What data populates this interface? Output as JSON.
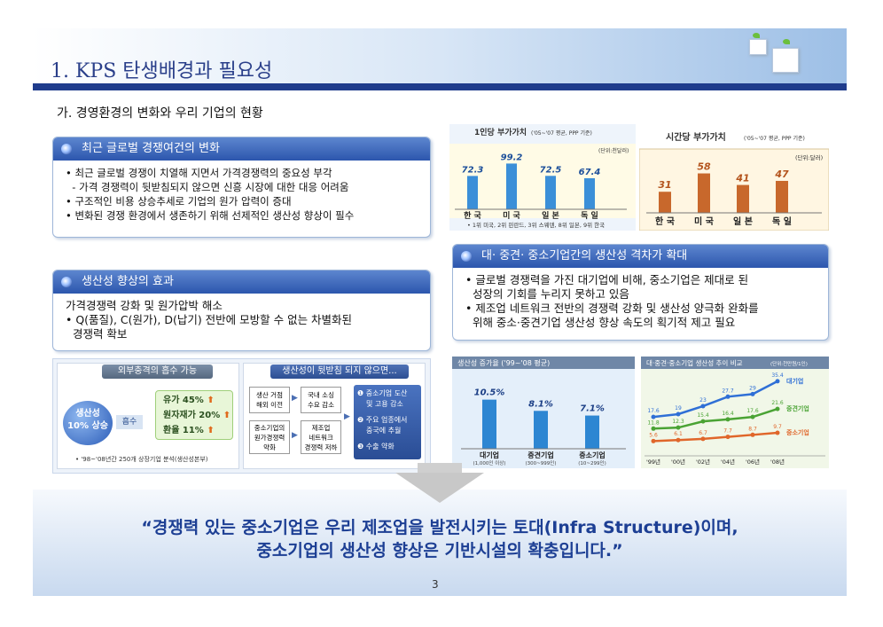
{
  "header": {
    "title": "1. KPS 탄생배경과 필요성"
  },
  "subtitle": "가. 경영환경의 변화와 우리 기업의 현황",
  "box1": {
    "heading": "최근 글로벌 경쟁여건의 변화",
    "lines": [
      "• 최근 글로벌 경쟁이 치열해 지면서 가격경쟁력의 중요성 부각",
      "  - 가격 경쟁력이 뒷받침되지 않으면 신흥 시장에 대한 대응 어려움",
      "• 구조적인 비용 상승추세로 기업의 원가 압력이 증대",
      "• 변화된 경쟁 환경에서 생존하기 위해 선제적인 생산성 향상이 필수"
    ]
  },
  "box2": {
    "heading": "생산성 향상의 효과",
    "lines": [
      "가격경쟁력 강화 및 원가압박 해소",
      "• Q(품질), C(원가), D(납기) 전반에 모방할 수 없는 차별화된",
      "  경쟁력 확보"
    ]
  },
  "box3": {
    "heading": "대· 중견· 중소기업간의 생산성 격차가 확대",
    "lines": [
      "• 글로벌 경쟁력을 가진 대기업에 비해, 중소기업은 제대로 된",
      "  성장의 기회를 누리지 못하고 있음",
      "• 제조업 네트워크 전반의 경쟁력 강화 및 생산성 양극화 완화를",
      "  위해 중소·중견기업 생산성 향상 속도의 획기적 제고 필요"
    ]
  },
  "effects": {
    "left_head": "외부충격의 흡수 가능",
    "circle": [
      "생산성",
      "10% 상승"
    ],
    "absorb": "흡수",
    "items": [
      "유가 45%",
      "원자재가 20%",
      "환율 11%"
    ],
    "note": "• '98~'08년간 250개 상장기업 분석(생산성본부)",
    "right_head": "생산성이 뒷받침 되지 않으면...",
    "flow": [
      [
        "생산 거점",
        "해외 이전"
      ],
      [
        "국내 소싱",
        "수요 감소"
      ],
      [
        "중소기업의",
        "원가경쟁력",
        "약화"
      ],
      [
        "제조업",
        "네트워크",
        "경쟁력 저하"
      ]
    ],
    "results": [
      "❶ 중소기업 도산",
      "및 고용 감소",
      "❷ 주요 업종에서",
      "중국에 추월",
      "❸ 수출 약화"
    ]
  },
  "chart_data": [
    {
      "type": "bar",
      "title": "1인당 부가가치",
      "subtitle": "('05~'07 평균, PPP 기준)",
      "unit": "(단위:천달러)",
      "categories": [
        "한 국",
        "미 국",
        "일 본",
        "독 일"
      ],
      "values": [
        72.3,
        99.2,
        72.5,
        67.4
      ],
      "note": "• 1위 미국, 2위 핀란드, 3위 스웨덴, 8위 일본, 9위 한국",
      "color": "#3b8fd8"
    },
    {
      "type": "bar",
      "title": "시간당 부가가치",
      "subtitle": "('05~'07 평균, PPP 기준)",
      "unit": "(단위:달러)",
      "categories": [
        "한 국",
        "미 국",
        "일 본",
        "독 일"
      ],
      "values": [
        31,
        58,
        41,
        47
      ],
      "color": "#c8682c"
    },
    {
      "type": "bar",
      "title": "생산성 증가율 ('99~'08 평균)",
      "categories": [
        "대기업",
        "중견기업",
        "중소기업"
      ],
      "sublabels": [
        "(1,000인 이상)",
        "(300~999인)",
        "(10~299인)"
      ],
      "values": [
        "10.5%",
        "8.1%",
        "7.1%"
      ],
      "numeric": [
        10.5,
        8.1,
        7.1
      ],
      "color": "#2d86d2"
    },
    {
      "type": "line",
      "title": "대·중견·중소기업 생산성 추이 비교",
      "unit": "(단위:천만원/1인)",
      "x": [
        "'99년",
        "'00년",
        "'02년",
        "'04년",
        "'06년",
        "'08년"
      ],
      "series": [
        {
          "name": "대기업",
          "values": [
            17.6,
            19.0,
            23.0,
            27.7,
            29.0,
            35.4
          ],
          "color": "#2f6fd6"
        },
        {
          "name": "중견기업",
          "values": [
            11.8,
            12.3,
            15.4,
            16.4,
            17.6,
            21.6
          ],
          "color": "#4aa334"
        },
        {
          "name": "중소기업",
          "values": [
            5.6,
            6.1,
            6.7,
            7.7,
            8.7,
            9.7
          ],
          "color": "#e0662a"
        }
      ]
    }
  ],
  "quote": [
    "“경쟁력 있는 중소기업은 우리 제조업을 발전시키는 토대(Infra Structure)이며,",
    "중소기업의 생산성 향상은 기반시설의 확충입니다.”"
  ],
  "page_number": "3"
}
